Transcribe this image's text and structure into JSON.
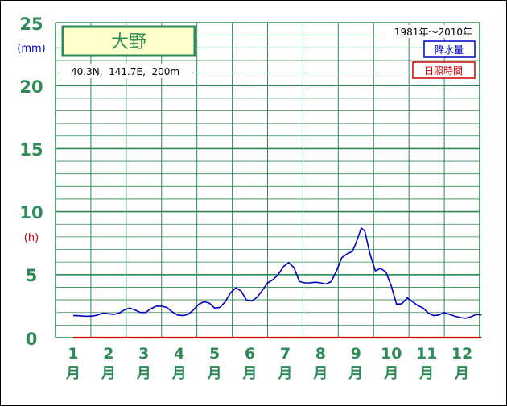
{
  "chart_data": {
    "type": "line",
    "title": "大野",
    "coords": "40.3N,  141.7E,  200m",
    "period": "1981年〜2010年",
    "y_unit_precip": "(mm)",
    "y_unit_sun": "(h)",
    "y_ticks_precip": [
      "25",
      "20",
      "15",
      "10",
      "5",
      "0"
    ],
    "y_ticks_sun": [
      "10",
      "5",
      "0"
    ],
    "ylim": [
      0,
      25
    ],
    "months": [
      "1",
      "2",
      "3",
      "4",
      "5",
      "6",
      "7",
      "8",
      "9",
      "10",
      "11",
      "12"
    ],
    "month_suffix": "月",
    "legend": [
      {
        "label": "降水量",
        "color": "#0000c0"
      },
      {
        "label": "日照時間",
        "color": "#cc0000"
      }
    ],
    "series": [
      {
        "name": "降水量",
        "color": "#0000c0",
        "x": [
          1.0,
          1.1,
          1.25,
          1.4,
          1.55,
          1.7,
          1.85,
          2.0,
          2.15,
          2.3,
          2.45,
          2.6,
          2.75,
          2.9,
          3.05,
          3.2,
          3.35,
          3.5,
          3.65,
          3.8,
          3.95,
          4.1,
          4.25,
          4.4,
          4.55,
          4.7,
          4.85,
          5.0,
          5.15,
          5.3,
          5.45,
          5.6,
          5.75,
          5.9,
          6.05,
          6.2,
          6.35,
          6.5,
          6.65,
          6.8,
          6.95,
          7.1,
          7.25,
          7.4,
          7.55,
          7.7,
          7.85,
          8.0,
          8.15,
          8.3,
          8.45,
          8.6,
          8.75,
          8.9,
          9.0,
          9.05,
          9.15,
          9.25,
          9.4,
          9.55,
          9.7,
          9.85,
          10.0,
          10.15,
          10.3,
          10.45,
          10.6,
          10.75,
          10.9,
          11.05,
          11.2,
          11.35,
          11.5,
          11.65,
          11.8,
          11.95,
          12.1,
          12.25,
          12.4,
          12.55
        ],
        "values": [
          1.75,
          1.75,
          1.72,
          1.7,
          1.72,
          1.8,
          1.95,
          1.9,
          1.85,
          1.95,
          2.2,
          2.35,
          2.2,
          2.0,
          2.0,
          2.3,
          2.5,
          2.5,
          2.4,
          2.05,
          1.8,
          1.75,
          1.85,
          2.2,
          2.65,
          2.85,
          2.75,
          2.35,
          2.4,
          2.85,
          3.55,
          3.95,
          3.7,
          3.0,
          2.9,
          3.2,
          3.75,
          4.35,
          4.6,
          5.0,
          5.65,
          5.95,
          5.55,
          4.45,
          4.35,
          4.35,
          4.4,
          4.35,
          4.25,
          4.45,
          5.3,
          6.35,
          6.65,
          6.85,
          7.5,
          7.9,
          8.7,
          8.45,
          6.6,
          5.3,
          5.5,
          5.2,
          4.1,
          2.65,
          2.7,
          3.15,
          2.85,
          2.55,
          2.35,
          1.95,
          1.75,
          1.8,
          2.0,
          1.85,
          1.7,
          1.6,
          1.55,
          1.65,
          1.85,
          1.8
        ]
      },
      {
        "name": "日照時間",
        "color": "#cc0000",
        "x": [
          1,
          12.55
        ],
        "values": [
          0,
          0
        ]
      }
    ]
  }
}
